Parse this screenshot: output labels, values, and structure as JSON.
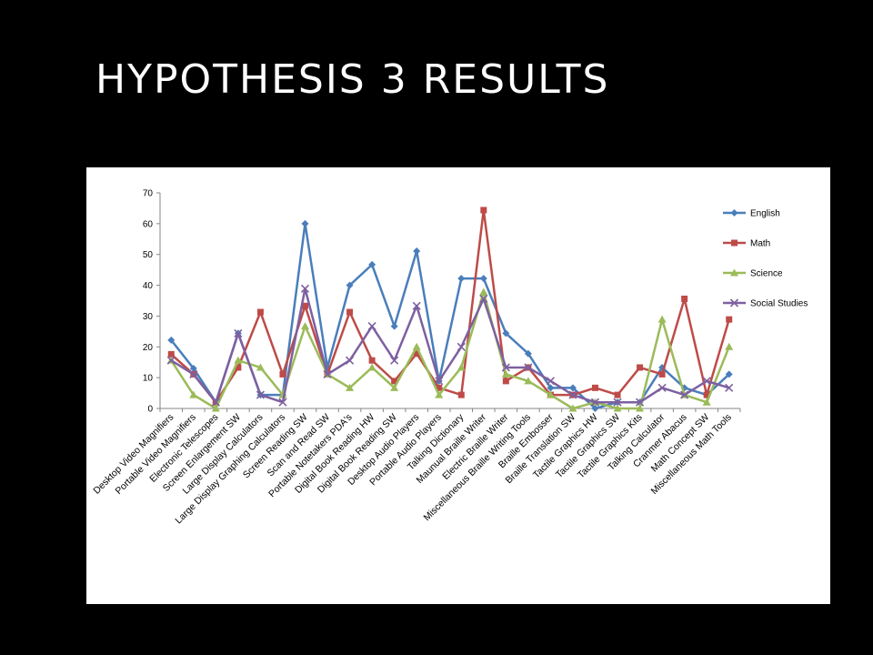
{
  "slide": {
    "title": "HYPOTHESIS 3 RESULTS"
  },
  "chart_data": {
    "type": "line",
    "title": "",
    "xlabel": "",
    "ylabel": "",
    "ylim": [
      0,
      70
    ],
    "yticks": [
      0,
      10,
      20,
      30,
      40,
      50,
      60,
      70
    ],
    "grid": false,
    "legend": "right",
    "categories": [
      "Desktop Video Magnifiers",
      "Portable Video Magnifiers",
      "Electronic Telescopes",
      "Screen Enlargement SW",
      "Large Display Calculators",
      "Large Display Graphing Calculators",
      "Screen Reading SW",
      "Scan and Read SW",
      "Portable Notetakers PDA's",
      "Digital Book Reading HW",
      "Digital Book Reading SW",
      "Desktop Audio Players",
      "Portable Audio Players",
      "Talking Dictionary",
      "Maunual Braille Writer",
      "Electric Braille Writer",
      "Miscellaneous Braille Writing Tools",
      "Braille Embosser",
      "Braille Translation SW",
      "Tactile Graphics HW",
      "Tactile Graphics SW",
      "Tactile Graphics Kits",
      "Talking Calculator",
      "Cranmer Abacus",
      "Math Concept SW",
      "Miscellaneous Math Tools"
    ],
    "series": [
      {
        "name": "English",
        "color": "#4a7ebb",
        "marker": "diamond",
        "values": [
          22.2,
          13,
          2,
          24.4,
          4.4,
          4.4,
          60,
          13.3,
          40,
          46.7,
          26.7,
          51.1,
          8.9,
          42.2,
          42.2,
          24.4,
          17.8,
          6.7,
          6.7,
          0,
          2,
          2,
          13.3,
          6.7,
          4.4,
          11.1
        ]
      },
      {
        "name": "Math",
        "color": "#be4b48",
        "marker": "square",
        "values": [
          17.6,
          11.1,
          2,
          13.3,
          31.3,
          11.1,
          33.3,
          11.1,
          31.3,
          15.6,
          8.9,
          17.8,
          6.7,
          4.4,
          64.4,
          8.9,
          13.3,
          4.4,
          4.4,
          6.7,
          4.4,
          13.3,
          11.1,
          35.6,
          4.4,
          28.9
        ]
      },
      {
        "name": "Science",
        "color": "#9bbb59",
        "marker": "triangle",
        "values": [
          15.6,
          4.4,
          0,
          15.6,
          13.3,
          4.4,
          26.7,
          11.1,
          6.7,
          13.3,
          6.7,
          20,
          4.4,
          13.3,
          37.8,
          11.1,
          8.9,
          4.4,
          0,
          2,
          0,
          0,
          28.9,
          4.4,
          2,
          20
        ]
      },
      {
        "name": "Social Studies",
        "color": "#7d60a0",
        "marker": "x",
        "values": [
          15.6,
          11.1,
          2,
          24.4,
          4.4,
          2,
          38.9,
          11.1,
          15.6,
          26.7,
          15.6,
          33.3,
          8.9,
          20,
          35.6,
          13.3,
          13.3,
          8.9,
          4.4,
          2,
          2,
          2,
          6.7,
          4.4,
          8.9,
          6.7
        ]
      }
    ]
  }
}
